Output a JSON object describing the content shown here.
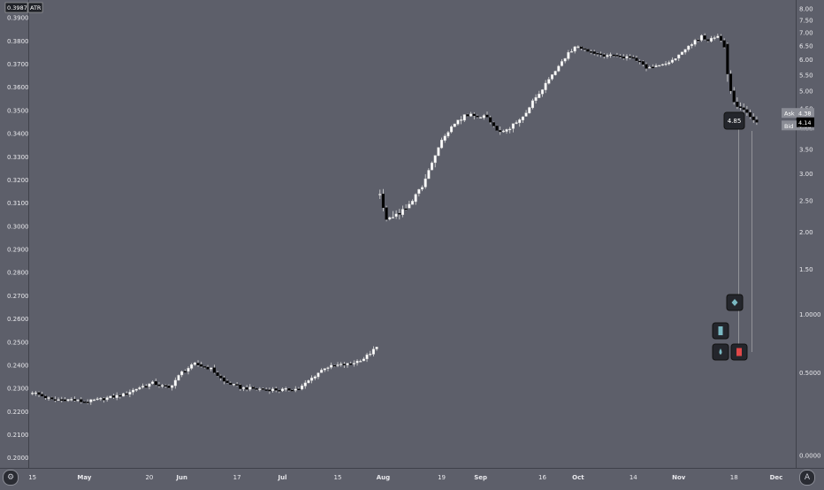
{
  "legend": {
    "left_value": "0.3987",
    "left_label": "ATR"
  },
  "colors": {
    "background": "#5d5f6a",
    "up_candle": "#ffffff",
    "down_candle": "#000000",
    "wick": "#d8d8d8",
    "axis_text": "#e8e8ec",
    "marker_bg": "#24262c",
    "stop_marker": "#e04848",
    "teal_marker": "#7ab8c2"
  },
  "price_tags": {
    "ask_label": "Ask",
    "ask_value": "4.38",
    "last_value": "4.14",
    "bid_label": "Bid",
    "bid_value": "4.06"
  },
  "markers": {
    "callout_value": "4.85",
    "items": [
      {
        "name": "diamond-marker-icon",
        "icon": "diamond",
        "color": "#7ab8c2"
      },
      {
        "name": "bar-marker-icon",
        "icon": "bar",
        "color": "#7ab8c2"
      },
      {
        "name": "drop-marker-icon",
        "icon": "drop",
        "color": "#7ab8c2"
      },
      {
        "name": "stop-marker-icon",
        "icon": "square",
        "color": "#e04848"
      }
    ]
  },
  "chart_data": {
    "type": "candlestick",
    "x_axis": {
      "tick_labels": [
        "15",
        "May",
        "20",
        "Jun",
        "17",
        "Jul",
        "15",
        "Aug",
        "19",
        "Sep",
        "16",
        "Oct",
        "14",
        "Nov",
        "18",
        "Dec"
      ],
      "tick_days": [
        0,
        16,
        36,
        46,
        63,
        77,
        94,
        108,
        126,
        138,
        157,
        168,
        185,
        199,
        216,
        229
      ],
      "range_days": [
        -1,
        235
      ]
    },
    "left_axis": {
      "scale": "linear",
      "range": [
        0.1955,
        0.3975
      ],
      "ticks": [
        "0.3900",
        "0.3800",
        "0.3700",
        "0.3600",
        "0.3500",
        "0.3400",
        "0.3300",
        "0.3200",
        "0.3100",
        "0.3000",
        "0.2900",
        "0.2800",
        "0.2700",
        "0.2600",
        "0.2500",
        "0.2400",
        "0.2300",
        "0.2200",
        "0.2100",
        "0.2000"
      ]
    },
    "right_axis": {
      "scale": "log",
      "range": [
        -0.062,
        8.38
      ],
      "ticks": [
        "8.00",
        "7.50",
        "7.00",
        "6.50",
        "6.00",
        "5.50",
        "5.00",
        "4.50",
        "4.00",
        "3.50",
        "3.00",
        "2.50",
        "2.00",
        "1.50",
        "1.0000",
        "0.5000",
        "0.0000"
      ]
    },
    "series": [
      {
        "axis": "left",
        "day_range": [
          0,
          106
        ],
        "keypoints": [
          [
            0,
            0.2282
          ],
          [
            6,
            0.2249
          ],
          [
            12,
            0.225
          ],
          [
            16,
            0.2239
          ],
          [
            22,
            0.2254
          ],
          [
            28,
            0.2271
          ],
          [
            33,
            0.2303
          ],
          [
            37,
            0.2321
          ],
          [
            42,
            0.2299
          ],
          [
            46,
            0.2368
          ],
          [
            50,
            0.2404
          ],
          [
            55,
            0.2382
          ],
          [
            59,
            0.2328
          ],
          [
            64,
            0.2301
          ],
          [
            72,
            0.2293
          ],
          [
            78,
            0.2292
          ],
          [
            82,
            0.2296
          ],
          [
            86,
            0.2342
          ],
          [
            90,
            0.2388
          ],
          [
            94,
            0.2398
          ],
          [
            98,
            0.2404
          ],
          [
            102,
            0.2427
          ],
          [
            106,
            0.2475
          ]
        ]
      },
      {
        "axis": "right",
        "day_range": [
          107,
          213
        ],
        "keypoints": [
          [
            107,
            2.6
          ],
          [
            109,
            2.15
          ],
          [
            112,
            2.25
          ],
          [
            116,
            2.4
          ],
          [
            121,
            2.85
          ],
          [
            125,
            3.55
          ],
          [
            129,
            4.06
          ],
          [
            133,
            4.3
          ],
          [
            137,
            4.32
          ],
          [
            140,
            4.26
          ],
          [
            144,
            3.88
          ],
          [
            147,
            4.0
          ],
          [
            151,
            4.26
          ],
          [
            154,
            4.7
          ],
          [
            157,
            5.05
          ],
          [
            161,
            5.6
          ],
          [
            165,
            6.22
          ],
          [
            168,
            6.5
          ],
          [
            171,
            6.26
          ],
          [
            175,
            6.15
          ],
          [
            180,
            6.12
          ],
          [
            185,
            6.03
          ],
          [
            189,
            5.73
          ],
          [
            194,
            5.82
          ],
          [
            199,
            6.12
          ],
          [
            203,
            6.56
          ],
          [
            206,
            6.84
          ],
          [
            208,
            6.7
          ],
          [
            211,
            6.86
          ],
          [
            213,
            6.46
          ]
        ]
      },
      {
        "axis": "right",
        "day_range": [
          214,
          223
        ],
        "closes": [
          5.52,
          5.0,
          4.68,
          4.55,
          4.52,
          4.47,
          4.39,
          4.28,
          4.2,
          4.14
        ]
      }
    ]
  }
}
